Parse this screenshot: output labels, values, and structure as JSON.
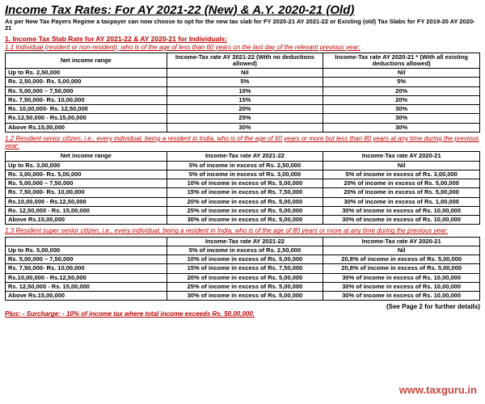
{
  "title": "Income Tax Rates: For AY 2021-22 (New) & A.Y. 2020-21 (Old)",
  "subtitle": "As per New Tax Payers Regime a taxpayer can now choose to opt for the new tax slab for FY 2020-21 AY 2021-22 or Existing (old) Tax Slabs for FY 2019-20 AY 2020-21",
  "section1_header": "1. Income Tax Slab Rate for AY 2021-22 & AY 2020-21 for Individuals:",
  "sub1_1": "1.1 Individual (resident or non-resident), who is of the age of less than 60 years on the last day of the relevant previous year:",
  "sub1_2": "1.2 Resident senior citizen, i.e., every individual, being a resident in India, who is of the age of 60 years or more but less than 80 years at any time during the previous year:",
  "sub1_3": "1.3 Resident super senior citizen, i.e., every individual, being a resident in India, who is of the age of 80 years or more at any time during the previous year:",
  "headers": {
    "range": "Net income range",
    "rate_new": "Income-Tax rate AY 2021-22\n(With no deductions allowed)",
    "rate_old": "Income-Tax rate AY 2020-21 *\n(With all existing deductions allowed)",
    "rate_new_b": "Income-Tax rate AY 2021-22",
    "rate_old_b": "Income-Tax rate AY 2020-21"
  },
  "table1": [
    [
      "Up to Rs. 2,50,000",
      "Nil",
      "Nil"
    ],
    [
      "Rs. 2,50,000- Rs. 5,00,000",
      "5%",
      "5%"
    ],
    [
      "Rs. 5,00,000 – 7,50,000",
      "10%",
      "20%"
    ],
    [
      "Rs. 7,50,000- Rs. 10,00,000",
      "15%",
      "20%"
    ],
    [
      "Rs. 10,00,000- Rs. 12,50,000",
      "20%",
      "30%"
    ],
    [
      "Rs.12,50,000 - Rs.15,00,000",
      "25%",
      "30%"
    ],
    [
      "Above Rs.15,00,000",
      "30%",
      "30%"
    ]
  ],
  "table2": [
    [
      "Up to Rs. 3,00,000",
      "5% of income in excess of Rs. 2,50,000",
      "Nil"
    ],
    [
      "Rs. 3,00,000- Rs. 5,00,000",
      "5% of income in excess of Rs. 3,00,000",
      "5% of income in excess of Rs. 3,00,000"
    ],
    [
      "Rs. 5,00,000 – 7,50,000",
      "10% of income in excess of Rs. 5,00,000",
      "20% of income in excess of Rs. 5,00,000"
    ],
    [
      "Rs. 7,50,000- Rs. 10,00,000",
      "15% of income in excess of Rs. 7,50,000",
      "20% of income in excess of Rs. 5,00,000"
    ],
    [
      "Rs.10,00,000 - Rs.12,50,000",
      "20% of income in excess of Rs. 5,00,000",
      "30% of income in excess of Rs. 1,00,000"
    ],
    [
      "Rs. 12,50,000 - Rs. 15,00,000",
      "25% of income in excess of Rs. 5,00,000",
      "30% of income in excess of Rs. 10,00,000"
    ],
    [
      "Above Rs.15,00,000",
      "30% of income in excess of Rs. 5,00,000",
      "30% of income in excess of Rs. 10,00,000"
    ]
  ],
  "table3": [
    [
      "Up to Rs. 5,00,000",
      "5% of income in excess of Rs. 2,50,000",
      "Nil"
    ],
    [
      "Rs. 5,00,000 – 7,50,000",
      "10% of income in excess of Rs. 5,00,000",
      "20,8% of income in excess of Rs. 5,00,000"
    ],
    [
      "Rs. 7,50,000- Rs. 10,00,000",
      "15% of income in excess of Rs. 7,50,000",
      "20,8% of income in excess of Rs. 5,00,000"
    ],
    [
      "Rs.10,00,000 - Rs.12,50,000",
      "20% of income in excess of Rs. 5,00,000",
      "30% of income in excess of Rs. 10,00,000"
    ],
    [
      "Rs. 12,50,000 - Rs. 15,00,000",
      "25% of income in excess of Rs. 5,00,000",
      "30% of income in excess of Rs. 10,00,000"
    ],
    [
      "Above Rs.15,00,000",
      "30% of income in excess of Rs. 5,00,000",
      "30% of income in excess of Rs. 10,00,000"
    ]
  ],
  "surcharge": "Plus: - Surcharge: - 10% of income tax where total income exceeds Rs. 50,00,000.",
  "see_page": "(See Page 2 for further details)",
  "watermark": "www.taxguru.in"
}
